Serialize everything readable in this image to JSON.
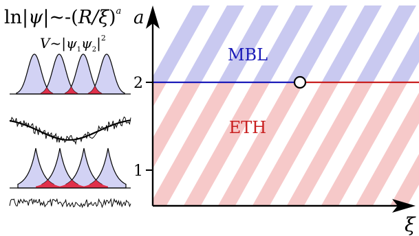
{
  "left_panel": {
    "formula_main": {
      "pre": "ln|",
      "psi": "ψ",
      "mid": "|~-(",
      "ratio": "R/ξ",
      "post": ")",
      "exponent": "a"
    },
    "formula_overlap": {
      "v": "V",
      "mid": "~|",
      "psi1": "ψ",
      "sub1": "1",
      "psi2": "ψ",
      "sub2": "2",
      "post": "|",
      "exponent": "2"
    }
  },
  "phase_diagram": {
    "x_axis_label": "ξ",
    "y_axis_label": "a",
    "y_ticks": [
      "1",
      "2"
    ],
    "region_top_label": "MBL",
    "region_bottom_label": "ETH",
    "colors": {
      "mbl_region": "#c9c9f0",
      "eth_region": "#f6c9c9",
      "mbl_text": "#1a1ab8",
      "eth_text": "#c81e1e",
      "boundary_left": "#1a1ab8",
      "boundary_right": "#c81e1e"
    }
  }
}
